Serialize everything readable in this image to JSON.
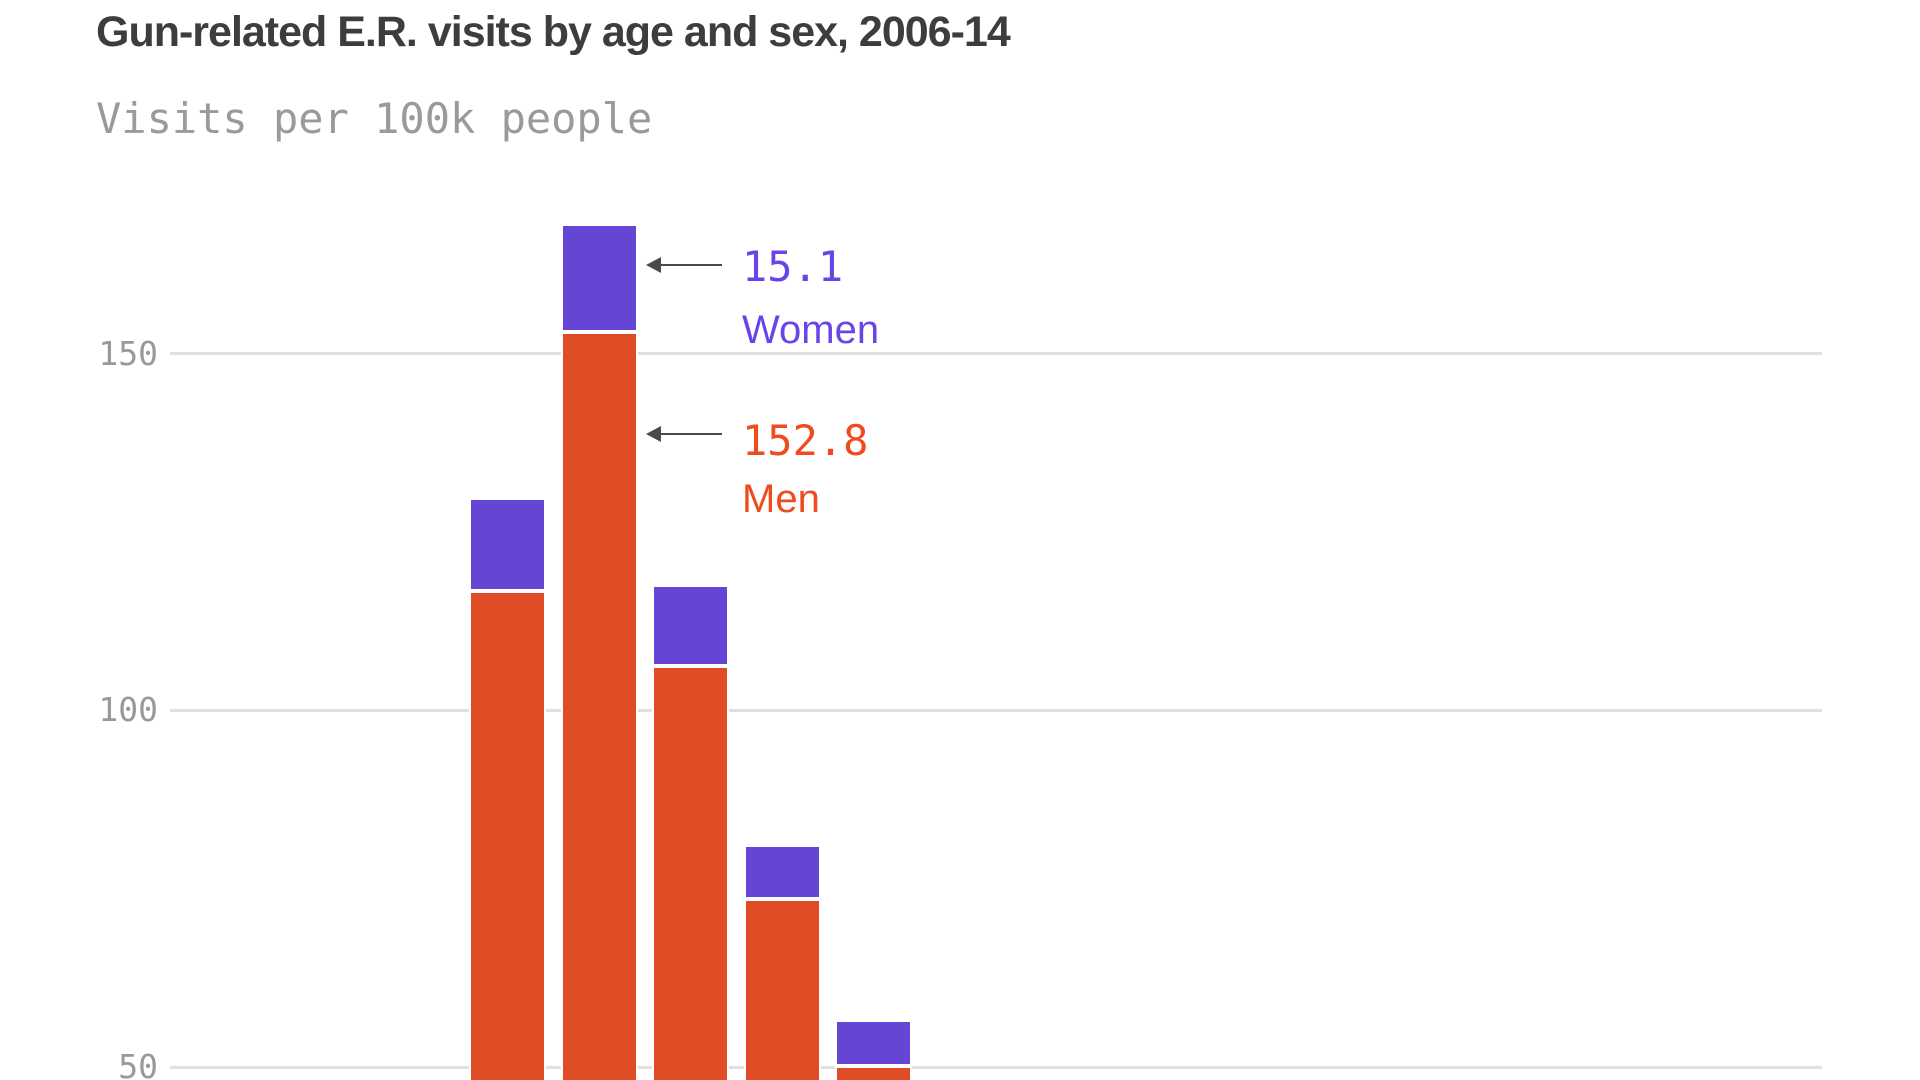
{
  "header": {
    "title": "Gun-related E.R. visits by age and sex, 2006-14",
    "subtitle": "Visits per 100k people"
  },
  "colors": {
    "men_bar": "#e04c26",
    "women_bar": "#6545d3",
    "men_text": "#ee4b1e",
    "women_text": "#6a43ea",
    "grid": "#e0e0e0",
    "tick_text": "#999999",
    "title_text": "#3d3d3d",
    "subtitle_text": "#9a9a9a",
    "arrow": "#4a4a4a",
    "background": "#ffffff"
  },
  "chart_data": {
    "type": "bar",
    "stacked": true,
    "title": "Gun-related E.R. visits by age and sex, 2006-14",
    "subtitle": "Visits per 100k people",
    "ylabel": "Visits per 100k people",
    "x_axis_labels_visible": false,
    "bottom_of_chart_cropped": true,
    "grid": true,
    "yticks": [
      "150",
      "100",
      "50"
    ],
    "ytick_values": [
      150,
      100,
      50
    ],
    "series": [
      {
        "name": "Men",
        "color": "#e04c26",
        "values": [
          116.5,
          152.8,
          106.0,
          73.3,
          49.8
        ]
      },
      {
        "name": "Women",
        "color": "#6545d3",
        "values": [
          13.0,
          15.1,
          11.3,
          7.6,
          6.5
        ]
      }
    ],
    "annotations": [
      {
        "value": "15.1",
        "label": "Women",
        "series": "Women",
        "target_bar_index": 1
      },
      {
        "value": "152.8",
        "label": "Men",
        "series": "Men",
        "target_bar_index": 1
      }
    ]
  }
}
